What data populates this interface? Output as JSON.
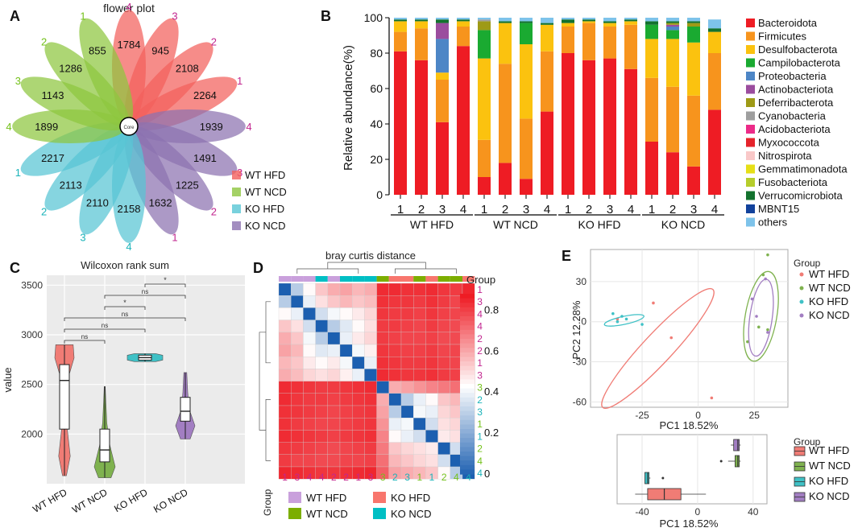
{
  "panel_letters": [
    "A",
    "B",
    "C",
    "D",
    "E"
  ],
  "colors": {
    "wt_hfd": "#f07c75",
    "wt_ncd": "#7fb24f",
    "ko_hfd": "#3fc1c6",
    "ko_ncd": "#a27ec2",
    "magenta": "#c2268f",
    "green_text": "#74c11b",
    "teal_text": "#1ab3b9",
    "heat_high": "#ee1c24",
    "heat_mid": "#ffffff",
    "heat_low": "#1c5fb0"
  },
  "chart_data": [
    {
      "type": "flower",
      "title": "flower plot",
      "center_label": "Core",
      "petals": [
        {
          "value": 1784,
          "sample": "4",
          "group": "WT HFD"
        },
        {
          "value": 945,
          "sample": "3",
          "group": "WT HFD"
        },
        {
          "value": 2108,
          "sample": "2",
          "group": "WT HFD"
        },
        {
          "value": 2264,
          "sample": "1",
          "group": "WT HFD"
        },
        {
          "value": 1939,
          "sample": "4",
          "group": "KO NCD"
        },
        {
          "value": 1491,
          "sample": "3",
          "group": "KO NCD"
        },
        {
          "value": 1225,
          "sample": "2",
          "group": "KO NCD"
        },
        {
          "value": 1632,
          "sample": "1",
          "group": "KO NCD"
        },
        {
          "value": 2158,
          "sample": "4",
          "group": "KO HFD"
        },
        {
          "value": 2110,
          "sample": "3",
          "group": "KO HFD"
        },
        {
          "value": 2113,
          "sample": "2",
          "group": "KO HFD"
        },
        {
          "value": 2217,
          "sample": "1",
          "group": "KO HFD"
        },
        {
          "value": 1899,
          "sample": "4",
          "group": "WT NCD"
        },
        {
          "value": 1143,
          "sample": "3",
          "group": "WT NCD"
        },
        {
          "value": 1286,
          "sample": "2",
          "group": "WT NCD"
        },
        {
          "value": 855,
          "sample": "1",
          "group": "WT NCD"
        }
      ],
      "legend": [
        "WT HFD",
        "WT NCD",
        "KO HFD",
        "KO NCD"
      ]
    },
    {
      "type": "bar",
      "stacked": true,
      "ylabel": "Relative abundance(%)",
      "ylim": [
        0,
        100
      ],
      "yticks": [
        0,
        20,
        40,
        60,
        80,
        100
      ],
      "groups": [
        "WT HFD",
        "WT NCD",
        "KO HFD",
        "KO NCD"
      ],
      "categories": [
        "1",
        "2",
        "3",
        "4",
        "1",
        "2",
        "3",
        "4",
        "1",
        "2",
        "3",
        "4",
        "1",
        "2",
        "3",
        "4"
      ],
      "series": [
        {
          "name": "Bacteroidota",
          "color": "#ee1c24",
          "values": [
            81,
            76,
            41,
            84,
            10,
            18,
            9,
            47,
            80,
            76,
            77,
            71,
            30,
            24,
            16,
            48
          ]
        },
        {
          "name": "Firmicutes",
          "color": "#f7941d",
          "values": [
            11,
            18,
            24,
            11,
            21,
            56,
            34,
            34,
            15,
            21,
            18,
            25,
            36,
            37,
            40,
            32
          ]
        },
        {
          "name": "Desulfobacterota",
          "color": "#fbc20f",
          "values": [
            6,
            4,
            4,
            3,
            46,
            23,
            42,
            15,
            2,
            1,
            2,
            2,
            22,
            27,
            30,
            12
          ]
        },
        {
          "name": "Campilobacterota",
          "color": "#1aaa31",
          "values": [
            0,
            0,
            0,
            0,
            16,
            0,
            12,
            0,
            0,
            0,
            0,
            0,
            8,
            5,
            9,
            0
          ]
        },
        {
          "name": "Proteobacteria",
          "color": "#4d86c6",
          "values": [
            0,
            0,
            19,
            0,
            0,
            0,
            0,
            0,
            0,
            0,
            0,
            0,
            0,
            2,
            0,
            0
          ]
        },
        {
          "name": "Actinobacteriota",
          "color": "#9b4d9e",
          "values": [
            0,
            0,
            9,
            0,
            0,
            0,
            0,
            0,
            0,
            0,
            0,
            0,
            0,
            1,
            0,
            0
          ]
        },
        {
          "name": "Deferribacterota",
          "color": "#9e9a16",
          "values": [
            0,
            0,
            0,
            0,
            5,
            0,
            0,
            0,
            0,
            0,
            0,
            0,
            0,
            1,
            2,
            0
          ]
        },
        {
          "name": "Cyanobacteria",
          "color": "#9e9e9e",
          "values": [
            0,
            0,
            0,
            0,
            1,
            0,
            0,
            0,
            0,
            0,
            0,
            0,
            0,
            0,
            0,
            0
          ]
        },
        {
          "name": "Acidobacteriota",
          "color": "#ec2b88",
          "values": [
            0,
            0,
            0,
            0,
            0,
            0,
            0,
            0,
            0,
            0,
            0,
            0,
            0,
            0,
            0,
            0
          ]
        },
        {
          "name": "Myxococcota",
          "color": "#e5232b",
          "values": [
            0,
            0,
            0,
            0,
            0,
            0,
            0,
            0,
            0,
            0,
            0,
            0,
            0,
            0,
            0,
            0
          ]
        },
        {
          "name": "Nitrospirota",
          "color": "#f9c8c8",
          "values": [
            0,
            0,
            0,
            0,
            0,
            0,
            0,
            0,
            0,
            0,
            0,
            0,
            0,
            0,
            0,
            0
          ]
        },
        {
          "name": "Gemmatimonadota",
          "color": "#e6df17",
          "values": [
            0,
            0,
            0,
            0,
            0,
            0,
            0,
            0,
            0,
            0,
            0,
            0,
            0,
            0,
            0,
            0
          ]
        },
        {
          "name": "Fusobacteriota",
          "color": "#b6cd2b",
          "values": [
            0,
            0,
            0,
            0,
            0,
            0,
            0,
            0,
            0,
            0,
            0,
            0,
            0,
            0,
            0,
            0
          ]
        },
        {
          "name": "Verrucomicrobiota",
          "color": "#13722e",
          "values": [
            1,
            1,
            2,
            1,
            0,
            1,
            1,
            1,
            2,
            1,
            1,
            1,
            2,
            1,
            1,
            2
          ]
        },
        {
          "name": "MBNT15",
          "color": "#12429c",
          "values": [
            0,
            0,
            0,
            0,
            0,
            0,
            0,
            0,
            0,
            0,
            0,
            0,
            0,
            0,
            0,
            0
          ]
        },
        {
          "name": "others",
          "color": "#7ec3ea",
          "values": [
            1,
            1,
            1,
            1,
            1,
            2,
            2,
            3,
            1,
            1,
            2,
            1,
            2,
            2,
            2,
            5
          ]
        }
      ]
    },
    {
      "type": "violin-box",
      "title": "Wilcoxon rank sum",
      "ylabel": "value",
      "ylim": [
        1500,
        3600
      ],
      "yticks": [
        2000,
        2500,
        3000,
        3500
      ],
      "categories": [
        "WT HFD",
        "WT NCD",
        "KO HFD",
        "KO NCD"
      ],
      "boxes": [
        {
          "min": 1580,
          "q1": 2050,
          "median": 2540,
          "q3": 2700,
          "max": 2900
        },
        {
          "min": 1560,
          "q1": 1720,
          "median": 1840,
          "q3": 2050,
          "max": 2480
        },
        {
          "min": 2730,
          "q1": 2745,
          "median": 2770,
          "q3": 2795,
          "max": 2810
        },
        {
          "min": 1950,
          "q1": 2130,
          "median": 2230,
          "q3": 2370,
          "max": 2620
        }
      ],
      "comparisons": [
        {
          "from": "WT HFD",
          "to": "WT NCD",
          "label": "ns"
        },
        {
          "from": "WT HFD",
          "to": "KO HFD",
          "label": "ns"
        },
        {
          "from": "WT HFD",
          "to": "KO NCD",
          "label": "ns"
        },
        {
          "from": "WT NCD",
          "to": "KO HFD",
          "label": "*"
        },
        {
          "from": "WT NCD",
          "to": "KO NCD",
          "label": "ns"
        },
        {
          "from": "KO HFD",
          "to": "KO NCD",
          "label": "*"
        }
      ]
    },
    {
      "type": "heatmap",
      "title": "bray curtis distance",
      "group_label": "Group",
      "samples": [
        {
          "label": "1",
          "group": "WT HFD"
        },
        {
          "label": "3",
          "group": "WT HFD"
        },
        {
          "label": "4",
          "group": "WT HFD"
        },
        {
          "label": "4",
          "group": "KO NCD"
        },
        {
          "label": "2",
          "group": "WT HFD"
        },
        {
          "label": "2",
          "group": "KO NCD"
        },
        {
          "label": "1",
          "group": "KO NCD"
        },
        {
          "label": "3",
          "group": "KO NCD"
        },
        {
          "label": "3",
          "group": "WT NCD"
        },
        {
          "label": "2",
          "group": "KO HFD"
        },
        {
          "label": "3",
          "group": "KO HFD"
        },
        {
          "label": "1",
          "group": "WT NCD"
        },
        {
          "label": "1",
          "group": "KO HFD"
        },
        {
          "label": "2",
          "group": "WT NCD"
        },
        {
          "label": "4",
          "group": "WT NCD"
        },
        {
          "label": "4",
          "group": "KO HFD"
        }
      ],
      "matrix": [
        [
          0.0,
          0.3,
          0.45,
          0.55,
          0.6,
          0.62,
          0.58,
          0.6,
          0.85,
          0.85,
          0.84,
          0.84,
          0.85,
          0.83,
          0.82,
          0.86
        ],
        [
          0.3,
          0.0,
          0.4,
          0.5,
          0.55,
          0.58,
          0.55,
          0.57,
          0.84,
          0.83,
          0.83,
          0.82,
          0.84,
          0.82,
          0.8,
          0.85
        ],
        [
          0.45,
          0.4,
          0.0,
          0.35,
          0.42,
          0.45,
          0.48,
          0.52,
          0.83,
          0.82,
          0.82,
          0.81,
          0.83,
          0.81,
          0.8,
          0.84
        ],
        [
          0.55,
          0.5,
          0.35,
          0.0,
          0.3,
          0.38,
          0.45,
          0.5,
          0.82,
          0.82,
          0.81,
          0.8,
          0.82,
          0.8,
          0.79,
          0.83
        ],
        [
          0.6,
          0.55,
          0.42,
          0.3,
          0.0,
          0.4,
          0.48,
          0.52,
          0.82,
          0.81,
          0.8,
          0.8,
          0.81,
          0.79,
          0.79,
          0.83
        ],
        [
          0.62,
          0.58,
          0.45,
          0.38,
          0.4,
          0.0,
          0.42,
          0.47,
          0.83,
          0.82,
          0.81,
          0.81,
          0.82,
          0.8,
          0.8,
          0.84
        ],
        [
          0.58,
          0.55,
          0.48,
          0.45,
          0.48,
          0.42,
          0.0,
          0.4,
          0.84,
          0.83,
          0.82,
          0.82,
          0.83,
          0.81,
          0.8,
          0.85
        ],
        [
          0.6,
          0.57,
          0.52,
          0.5,
          0.52,
          0.47,
          0.4,
          0.0,
          0.85,
          0.84,
          0.83,
          0.83,
          0.84,
          0.82,
          0.81,
          0.86
        ],
        [
          0.85,
          0.84,
          0.83,
          0.82,
          0.82,
          0.83,
          0.84,
          0.85,
          0.0,
          0.6,
          0.62,
          0.65,
          0.68,
          0.7,
          0.72,
          0.75
        ],
        [
          0.85,
          0.83,
          0.82,
          0.82,
          0.81,
          0.82,
          0.83,
          0.84,
          0.6,
          0.0,
          0.3,
          0.4,
          0.45,
          0.55,
          0.58,
          0.62
        ],
        [
          0.84,
          0.83,
          0.82,
          0.81,
          0.8,
          0.81,
          0.82,
          0.83,
          0.62,
          0.3,
          0.0,
          0.42,
          0.4,
          0.52,
          0.55,
          0.6
        ],
        [
          0.84,
          0.82,
          0.81,
          0.8,
          0.8,
          0.81,
          0.82,
          0.83,
          0.65,
          0.4,
          0.42,
          0.0,
          0.35,
          0.5,
          0.52,
          0.58
        ],
        [
          0.85,
          0.84,
          0.83,
          0.82,
          0.81,
          0.82,
          0.83,
          0.84,
          0.68,
          0.45,
          0.4,
          0.35,
          0.0,
          0.48,
          0.5,
          0.55
        ],
        [
          0.83,
          0.82,
          0.81,
          0.8,
          0.79,
          0.8,
          0.81,
          0.82,
          0.7,
          0.55,
          0.52,
          0.5,
          0.48,
          0.0,
          0.35,
          0.45
        ],
        [
          0.82,
          0.8,
          0.8,
          0.79,
          0.79,
          0.8,
          0.8,
          0.81,
          0.72,
          0.58,
          0.55,
          0.52,
          0.5,
          0.35,
          0.0,
          0.3
        ],
        [
          0.86,
          0.85,
          0.84,
          0.83,
          0.83,
          0.84,
          0.85,
          0.86,
          0.75,
          0.62,
          0.6,
          0.58,
          0.55,
          0.45,
          0.3,
          0.0
        ]
      ],
      "scale_ticks": [
        "0.8",
        "0.6",
        "0.4",
        "0.2",
        "0"
      ],
      "legend": [
        "WT HFD",
        "KO HFD",
        "WT NCD",
        "KO NCD"
      ]
    },
    {
      "type": "scatter",
      "xlabel": "PC1 18.52%",
      "ylabel": "PC2 12.28%",
      "xlim": [
        -48,
        40
      ],
      "ylim": [
        -64,
        54
      ],
      "xticks": [
        -25,
        0,
        25
      ],
      "yticks": [
        30,
        0,
        -30,
        -60
      ],
      "legend_title": "Group",
      "groups": [
        {
          "name": "WT HFD",
          "points": [
            [
              -20,
              14
            ],
            [
              -12,
              -12
            ],
            [
              6,
              -57
            ],
            [
              -36,
              2
            ]
          ],
          "ellipse": {
            "cx": -18,
            "cy": -20,
            "rx": 36,
            "ry": 11,
            "angle": -47
          }
        },
        {
          "name": "WT NCD",
          "points": [
            [
              31,
              50
            ],
            [
              29,
              35
            ],
            [
              31,
              -6
            ],
            [
              22,
              -15
            ],
            [
              27,
              -4
            ]
          ],
          "ellipse": {
            "cx": 28,
            "cy": 4,
            "rx": 7,
            "ry": 34,
            "angle": 10
          }
        },
        {
          "name": "KO HFD",
          "points": [
            [
              -38,
              6
            ],
            [
              -34,
              4
            ],
            [
              -32,
              2
            ],
            [
              -25,
              -2
            ],
            [
              -36,
              0
            ]
          ],
          "ellipse": {
            "cx": -33,
            "cy": 1,
            "rx": 9,
            "ry": 3,
            "angle": -12
          }
        },
        {
          "name": "KO NCD",
          "points": [
            [
              30,
              32
            ],
            [
              26,
              4
            ],
            [
              31,
              -8
            ],
            [
              24,
              17
            ]
          ],
          "ellipse": {
            "cx": 28,
            "cy": 3,
            "rx": 5,
            "ry": 29,
            "angle": 8
          }
        }
      ]
    },
    {
      "type": "box",
      "orientation": "horizontal",
      "xlabel": "PC1 18.52%",
      "xlim": [
        -58,
        50
      ],
      "xticks": [
        -40,
        0,
        40
      ],
      "legend_title": "Group",
      "categories": [
        "KO NCD",
        "WT NCD",
        "KO HFD",
        "WT HFD"
      ],
      "boxes": [
        {
          "group": "KO NCD",
          "min": 24,
          "q1": 26,
          "median": 29,
          "q3": 30,
          "max": 31,
          "outliers": []
        },
        {
          "group": "WT NCD",
          "min": 22,
          "q1": 27,
          "median": 29,
          "q3": 30,
          "max": 31,
          "outliers": [
            17
          ]
        },
        {
          "group": "KO HFD",
          "min": -38,
          "q1": -38,
          "median": -36,
          "q3": -35,
          "max": -34,
          "outliers": [
            -25
          ]
        },
        {
          "group": "WT HFD",
          "min": -45,
          "q1": -36,
          "median": -24,
          "q3": -12,
          "max": 6,
          "outliers": []
        }
      ]
    }
  ]
}
